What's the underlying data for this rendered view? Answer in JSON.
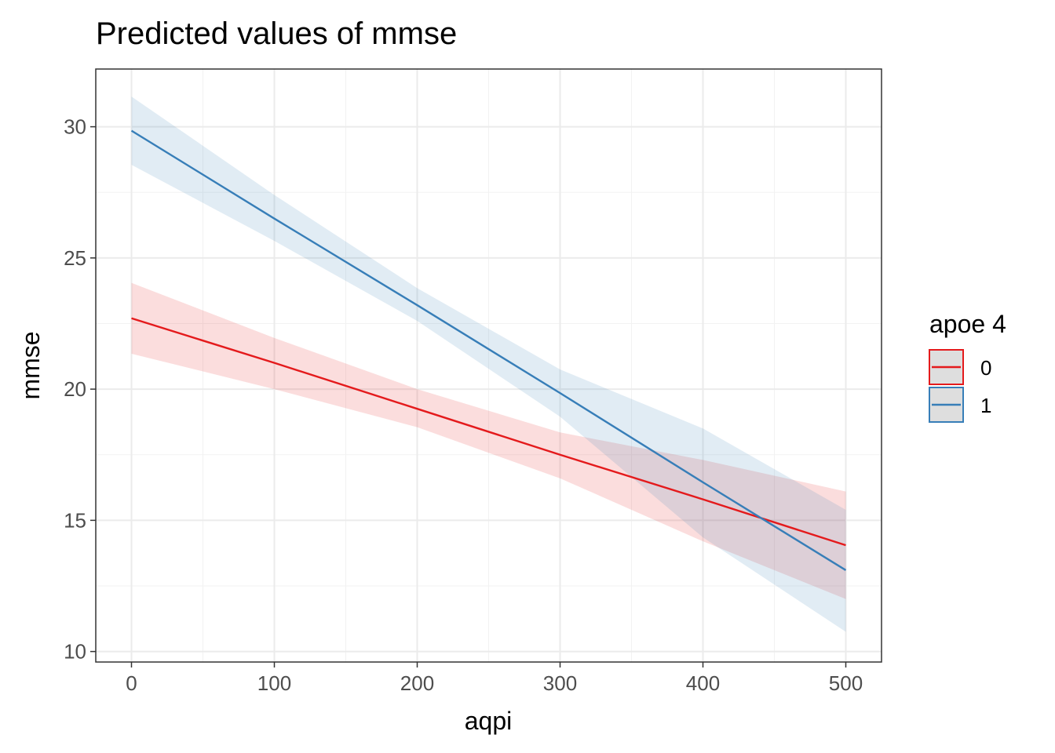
{
  "chart_data": {
    "type": "line",
    "title": "Predicted values of mmse",
    "xlabel": "aqpi",
    "ylabel": "mmse",
    "xlim": [
      -25,
      525
    ],
    "ylim": [
      9.6,
      32.2
    ],
    "x_ticks": [
      0,
      100,
      200,
      300,
      400,
      500
    ],
    "x_tick_labels": [
      "0",
      "100",
      "200",
      "300",
      "400",
      "500"
    ],
    "y_ticks": [
      10,
      15,
      20,
      25,
      30
    ],
    "y_tick_labels": [
      "10",
      "15",
      "20",
      "25",
      "30"
    ],
    "grid": true,
    "legend": {
      "title": "apoe 4",
      "position": "right"
    },
    "series": [
      {
        "name": "0",
        "color": "#e41a1c",
        "x": [
          0,
          100,
          200,
          300,
          400,
          500
        ],
        "y": [
          22.7,
          21.0,
          19.25,
          17.5,
          15.8,
          14.05
        ],
        "ci_low": [
          21.35,
          20.0,
          18.55,
          16.6,
          14.2,
          12.0
        ],
        "ci_high": [
          24.05,
          21.95,
          20.0,
          18.35,
          17.3,
          16.1
        ]
      },
      {
        "name": "1",
        "color": "#377eb8",
        "x": [
          0,
          100,
          200,
          300,
          400,
          500
        ],
        "y": [
          29.85,
          26.5,
          23.2,
          19.85,
          16.45,
          13.1
        ],
        "ci_low": [
          28.55,
          25.65,
          22.6,
          18.95,
          14.35,
          10.75
        ],
        "ci_high": [
          31.15,
          27.4,
          23.85,
          20.75,
          18.5,
          15.4
        ]
      }
    ]
  }
}
